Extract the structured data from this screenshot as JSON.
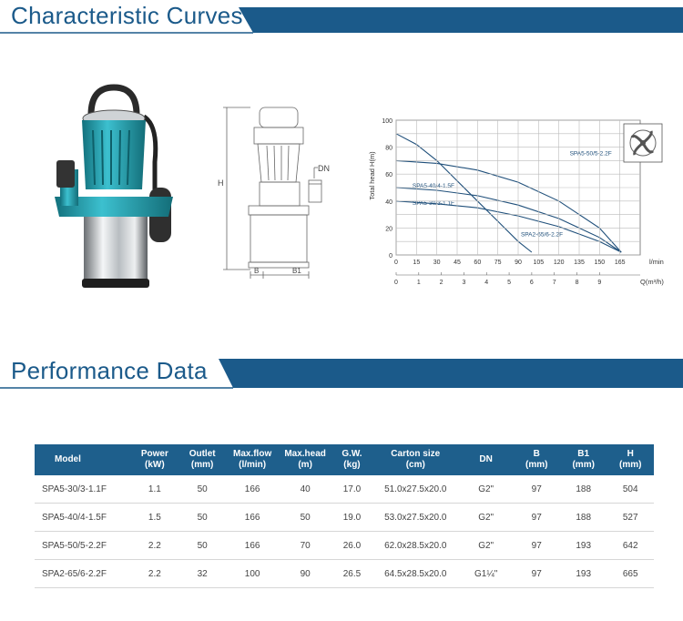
{
  "sections": {
    "curves_title": "Characteristic Curves",
    "performance_title": "Performance Data"
  },
  "colors": {
    "brand_blue": "#1b5a8a",
    "header_blue": "#1e5f8c",
    "pump_teal": "#2aa3b3"
  },
  "dimension_drawing": {
    "label_h": "H",
    "label_dn": "DN",
    "label_b": "B",
    "label_b1": "B1"
  },
  "impeller_icon": "impeller-icon",
  "chart_data": {
    "type": "line",
    "ylabel": "Total head  H(m)",
    "xlabel_top_unit": "l/min",
    "xlabel_bottom_unit": "Q(m³/h)",
    "ylim": [
      0,
      100
    ],
    "y_ticks": [
      "0",
      "20",
      "40",
      "60",
      "80",
      "100"
    ],
    "xlim": [
      0,
      180
    ],
    "x_ticks_lmin": [
      "0",
      "15",
      "30",
      "45",
      "60",
      "75",
      "90",
      "105",
      "120",
      "135",
      "150",
      "165"
    ],
    "x_ticks_m3h": [
      "0",
      "1",
      "2",
      "3",
      "4",
      "5",
      "6",
      "7",
      "8",
      "9"
    ],
    "grid": true,
    "series": [
      {
        "name": "SPA5-50/5-2.2F",
        "x": [
          0,
          30,
          60,
          90,
          120,
          150,
          166
        ],
        "y": [
          70,
          68,
          63,
          54,
          40,
          20,
          2
        ]
      },
      {
        "name": "SPA5-40/4-1.5F",
        "x": [
          0,
          30,
          60,
          90,
          120,
          150,
          166
        ],
        "y": [
          50,
          48,
          44,
          37,
          27,
          13,
          2
        ]
      },
      {
        "name": "SPA5-30/3-1.1F",
        "x": [
          0,
          30,
          60,
          90,
          120,
          150,
          166
        ],
        "y": [
          40,
          38,
          35,
          29,
          21,
          10,
          2
        ]
      },
      {
        "name": "SPA2-65/6-2.2F",
        "x": [
          0,
          15,
          30,
          45,
          60,
          75,
          90,
          100
        ],
        "y": [
          90,
          82,
          70,
          55,
          40,
          25,
          10,
          2
        ]
      }
    ]
  },
  "table": {
    "headers": [
      [
        "Model"
      ],
      [
        "Power",
        "(kW)"
      ],
      [
        "Outlet",
        "(mm)"
      ],
      [
        "Max.flow",
        "(l/min)"
      ],
      [
        "Max.head",
        "(m)"
      ],
      [
        "G.W.",
        "(kg)"
      ],
      [
        "Carton size",
        "(cm)"
      ],
      [
        "DN"
      ],
      [
        "B",
        "(mm)"
      ],
      [
        "B1",
        "(mm)"
      ],
      [
        "H",
        "(mm)"
      ]
    ],
    "rows": [
      [
        "SPA5-30/3-1.1F",
        "1.1",
        "50",
        "166",
        "40",
        "17.0",
        "51.0x27.5x20.0",
        "G2\"",
        "97",
        "188",
        "504"
      ],
      [
        "SPA5-40/4-1.5F",
        "1.5",
        "50",
        "166",
        "50",
        "19.0",
        "53.0x27.5x20.0",
        "G2\"",
        "97",
        "188",
        "527"
      ],
      [
        "SPA5-50/5-2.2F",
        "2.2",
        "50",
        "166",
        "70",
        "26.0",
        "62.0x28.5x20.0",
        "G2\"",
        "97",
        "193",
        "642"
      ],
      [
        "SPA2-65/6-2.2F",
        "2.2",
        "32",
        "100",
        "90",
        "26.5",
        "64.5x28.5x20.0",
        "G1¼\"",
        "97",
        "193",
        "665"
      ]
    ]
  }
}
